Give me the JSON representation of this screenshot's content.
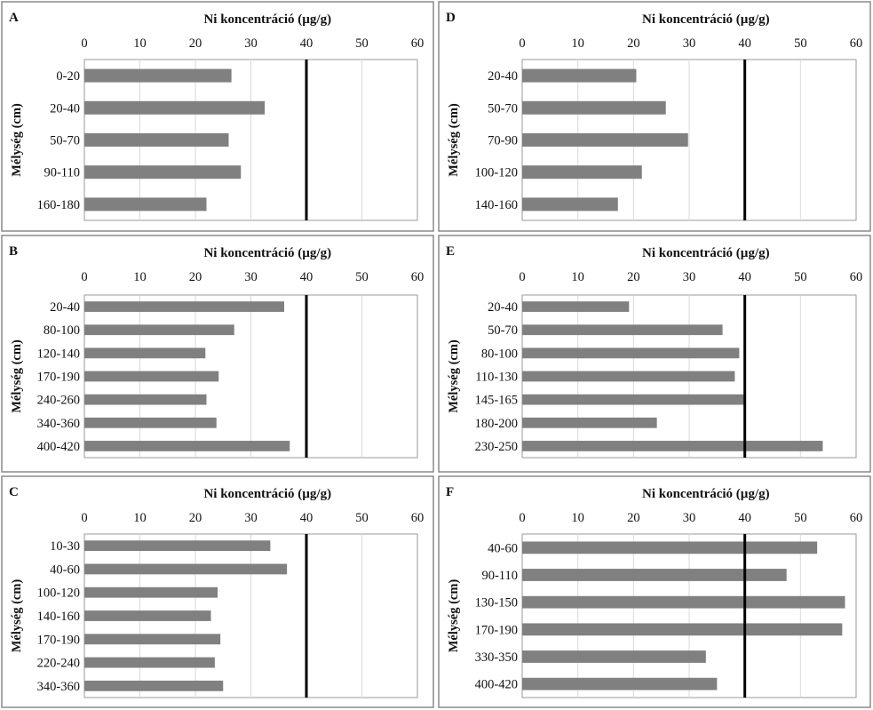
{
  "figure": {
    "threshold_value": 40,
    "colors": {
      "bar": "#808080",
      "threshold": "#000000",
      "grid": "#d9d9d9",
      "frame": "#9a9a9a"
    }
  },
  "chart_data": [
    {
      "type": "bar",
      "orientation": "horizontal",
      "panel": "A",
      "title": "",
      "xlabel": "Ni koncentráció (µg/g)",
      "ylabel": "Mélység (cm)",
      "xlim": [
        0,
        60
      ],
      "xticks": [
        0,
        10,
        20,
        30,
        40,
        50,
        60
      ],
      "categories": [
        "0-20",
        "20-40",
        "50-70",
        "90-110",
        "160-180"
      ],
      "values": [
        26.5,
        32.5,
        26,
        28.2,
        22
      ],
      "reference_line": 40
    },
    {
      "type": "bar",
      "orientation": "horizontal",
      "panel": "B",
      "title": "",
      "xlabel": "Ni koncentráció (µg/g)",
      "ylabel": "Mélység (cm)",
      "xlim": [
        0,
        60
      ],
      "xticks": [
        0,
        10,
        20,
        30,
        40,
        50,
        60
      ],
      "categories": [
        "20-40",
        "80-100",
        "120-140",
        "170-190",
        "240-260",
        "340-360",
        "400-420"
      ],
      "values": [
        36,
        27,
        21.8,
        24.2,
        22,
        23.8,
        37
      ],
      "reference_line": 40
    },
    {
      "type": "bar",
      "orientation": "horizontal",
      "panel": "C",
      "title": "",
      "xlabel": "Ni koncentráció (µg/g)",
      "ylabel": "Mélység (cm)",
      "xlim": [
        0,
        60
      ],
      "xticks": [
        0,
        10,
        20,
        30,
        40,
        50,
        60
      ],
      "categories": [
        "10-30",
        "40-60",
        "100-120",
        "140-160",
        "170-190",
        "220-240",
        "340-360"
      ],
      "values": [
        33.5,
        36.5,
        24,
        22.8,
        24.5,
        23.5,
        25
      ],
      "reference_line": 40
    },
    {
      "type": "bar",
      "orientation": "horizontal",
      "panel": "D",
      "title": "",
      "xlabel": "Ni koncentráció (µg/g)",
      "ylabel": "Mélység (cm)",
      "xlim": [
        0,
        60
      ],
      "xticks": [
        0,
        10,
        20,
        30,
        40,
        50,
        60
      ],
      "categories": [
        "20-40",
        "50-70",
        "70-90",
        "100-120",
        "140-160"
      ],
      "values": [
        20.5,
        25.8,
        29.8,
        21.5,
        17.2
      ],
      "reference_line": 40
    },
    {
      "type": "bar",
      "orientation": "horizontal",
      "panel": "E",
      "title": "",
      "xlabel": "Ni koncentráció (µg/g)",
      "ylabel": "Mélység (cm)",
      "xlim": [
        0,
        60
      ],
      "xticks": [
        0,
        10,
        20,
        30,
        40,
        50,
        60
      ],
      "categories": [
        "20-40",
        "50-70",
        "80-100",
        "110-130",
        "145-165",
        "180-200",
        "230-250"
      ],
      "values": [
        19.2,
        36,
        39,
        38.2,
        40.2,
        24.2,
        54
      ],
      "reference_line": 40
    },
    {
      "type": "bar",
      "orientation": "horizontal",
      "panel": "F",
      "title": "",
      "xlabel": "Ni koncentráció (µg/g)",
      "ylabel": "Mélység (cm)",
      "xlim": [
        0,
        60
      ],
      "xticks": [
        0,
        10,
        20,
        30,
        40,
        50,
        60
      ],
      "categories": [
        "40-60",
        "90-110",
        "130-150",
        "170-190",
        "330-350",
        "400-420"
      ],
      "values": [
        53,
        47.5,
        58,
        57.5,
        33,
        35
      ],
      "reference_line": 40
    }
  ]
}
